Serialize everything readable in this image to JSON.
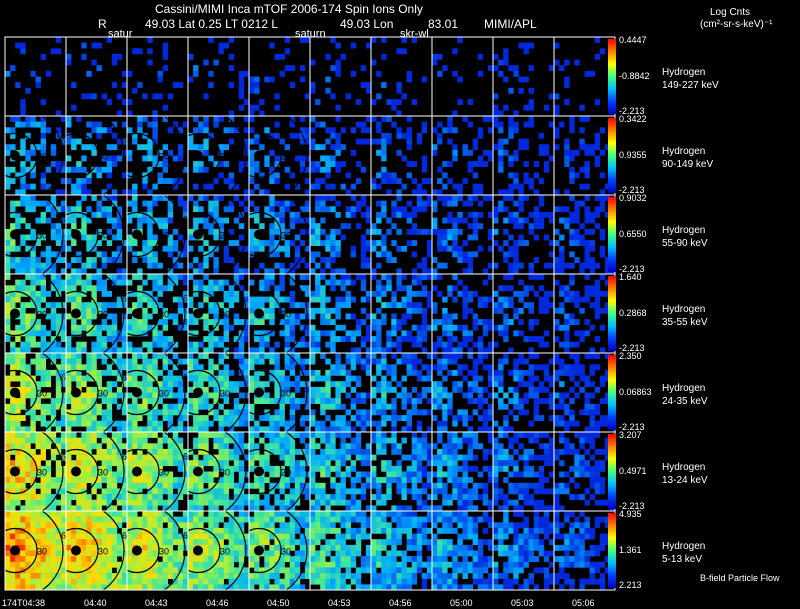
{
  "header": {
    "title": "Cassini/MIMI Inca mTOF  2006-174   Spin    Ions Only",
    "line2_r": "R",
    "line2_lat": "49.03 Lat 0.25 LT 0212 L",
    "line2_lon": "49.03 Lon",
    "line2_val": "83.01",
    "line2_src": "MIMI/APL",
    "label_saturn_1": "satur",
    "label_saturn_2": "saturn",
    "label_skr": "skr-wl"
  },
  "units": {
    "title": "Log Cnts",
    "unit": "(cm²-sr-s-keV)⁻¹"
  },
  "colors": {
    "background": "#000000",
    "grid_line": "#ffffff",
    "colorbar_top": "#ff0000",
    "colorbar_bottom": "#0000c0"
  },
  "ring_labels": [
    "30",
    "60"
  ],
  "time_labels": [
    "174T04:38",
    "04:40",
    "04:43",
    "04:46",
    "04:50",
    "04:53",
    "04:56",
    "05:00",
    "05:03",
    "05:06"
  ],
  "rows": [
    {
      "species": "Hydrogen",
      "energy": "149-227 keV",
      "max": "0.4447",
      "mid": "-0.8842",
      "min": "-2.213",
      "level": 0.1
    },
    {
      "species": "Hydrogen",
      "energy": "90-149 keV",
      "max": "0.3422",
      "mid": "0.9355",
      "min": "-2.213",
      "level": 0.3
    },
    {
      "species": "Hydrogen",
      "energy": "55-90 keV",
      "max": "0.9032",
      "mid": "0.6550",
      "min": "-2.213",
      "level": 0.42
    },
    {
      "species": "Hydrogen",
      "energy": "35-55 keV",
      "max": "1.640",
      "mid": "0.2868",
      "min": "-2.213",
      "level": 0.52
    },
    {
      "species": "Hydrogen",
      "energy": "24-35 keV",
      "max": "2.350",
      "mid": "0.06863",
      "min": "-2.213",
      "level": 0.62
    },
    {
      "species": "Hydrogen",
      "energy": "13-24 keV",
      "max": "3.207",
      "mid": "0.4971",
      "min": "-2.213",
      "level": 0.72
    },
    {
      "species": "Hydrogen",
      "energy": "5-13 keV",
      "max": "4.935",
      "mid": "1.361",
      "min": "2.213",
      "level": 0.82
    }
  ],
  "footer": {
    "bfield": "B-field Particle Flow"
  }
}
